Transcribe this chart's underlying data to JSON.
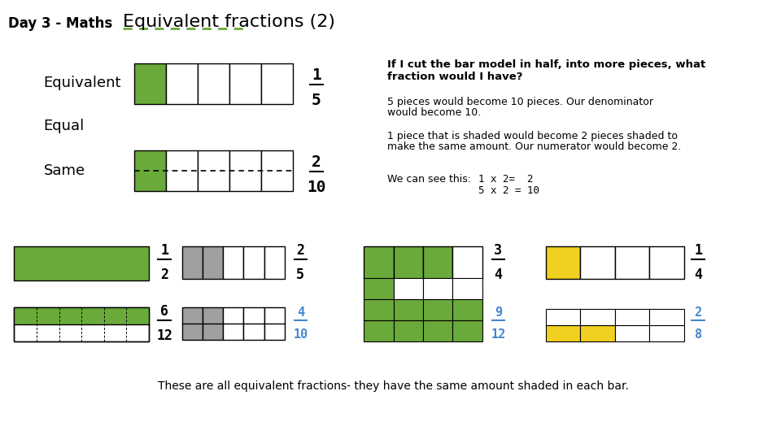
{
  "bg_color": "#ffffff",
  "title_left": "Day 3 - Maths",
  "title_right": "Equivalent fractions (2)",
  "green": "#6aaa3a",
  "dark_green": "#4a7a28",
  "gray": "#a0a0a0",
  "yellow": "#f0d020",
  "blue_text": "#4488cc",
  "text1": "If I cut the bar model in half, into more pieces, what",
  "text2": "fraction would I have?",
  "text3": "5 pieces would become 10 pieces. Our denominator",
  "text4": "would become 10.",
  "text5": "1 piece that is shaded would become 2 pieces shaded to",
  "text6": "make the same amount. Our numerator would become 2.",
  "text7": "We can see this:",
  "text8": "1 x 2=  2",
  "text9": "5 x 2 = 10",
  "text_bottom": "These are all equivalent fractions- they have the same amount shaded in each bar."
}
